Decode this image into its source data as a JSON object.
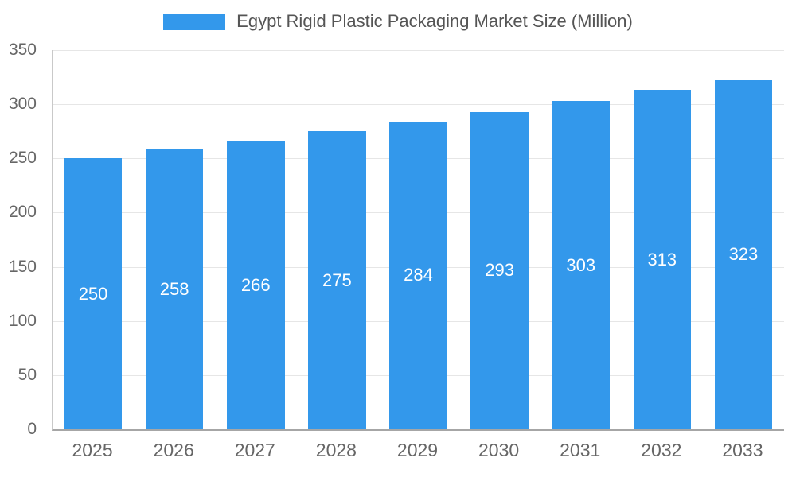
{
  "chart_data": {
    "type": "bar",
    "title": "Egypt Rigid Plastic Packaging Market Size (Million)",
    "categories": [
      "2025",
      "2026",
      "2027",
      "2028",
      "2029",
      "2030",
      "2031",
      "2032",
      "2033"
    ],
    "values": [
      250,
      258,
      266,
      275,
      284,
      293,
      303,
      313,
      323
    ],
    "xlabel": "",
    "ylabel": "",
    "ylim": [
      0,
      350
    ],
    "yticks": [
      0,
      50,
      100,
      150,
      200,
      250,
      300,
      350
    ],
    "grid": true,
    "legend_position": "top",
    "colors": {
      "bar": "#3398eb",
      "bar_label": "#ffffff",
      "axis_text": "#666666",
      "title_text": "#555555",
      "gridline": "#e6e6e6",
      "axis_line": "#a6a6a6",
      "background": "#ffffff"
    }
  }
}
